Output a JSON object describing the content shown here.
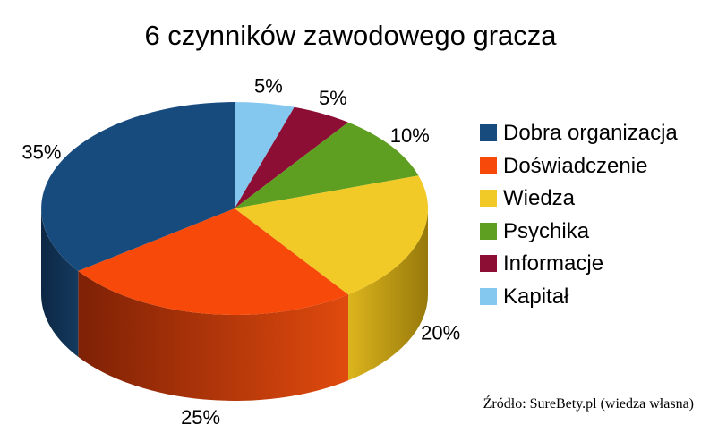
{
  "title": "6 czynników zawodowego gracza",
  "source": "Źródło: SureBety.pl (wiedza własna)",
  "chart_data": {
    "type": "pie",
    "style": "3d-pie",
    "title": "6 czynników zawodowego gracza",
    "unit": "%",
    "direction": "counter-clockwise-from-top-in-legend-order",
    "data_labels": "percent-outside",
    "legend_position": "right",
    "background": "#ffffff",
    "slices": [
      {
        "label": "Dobra organizacja",
        "value": 35,
        "pct_label": "35%",
        "color": "#174a7d",
        "side_colors": [
          "#0d2744",
          "#143a5f"
        ]
      },
      {
        "label": "Doświadczenie",
        "value": 25,
        "pct_label": "25%",
        "color": "#f74a0a",
        "side_colors": [
          "#7e2105",
          "#e04a0e"
        ]
      },
      {
        "label": "Wiedza",
        "value": 20,
        "pct_label": "20%",
        "color": "#f1ca28",
        "side_colors": [
          "#dcb51d",
          "#97790b"
        ]
      },
      {
        "label": "Psychika",
        "value": 10,
        "pct_label": "10%",
        "color": "#5e9e21",
        "side_colors": [
          "#3c6a12",
          "#4f8519"
        ]
      },
      {
        "label": "Informacje",
        "value": 5,
        "pct_label": "5%",
        "color": "#8d0e34",
        "side_colors": [
          "#550719",
          "#6e0a26"
        ]
      },
      {
        "label": "Kapitał",
        "value": 5,
        "pct_label": "5%",
        "color": "#84c7ef",
        "side_colors": [
          "#4f82a5",
          "#6aa8cf"
        ]
      }
    ]
  }
}
